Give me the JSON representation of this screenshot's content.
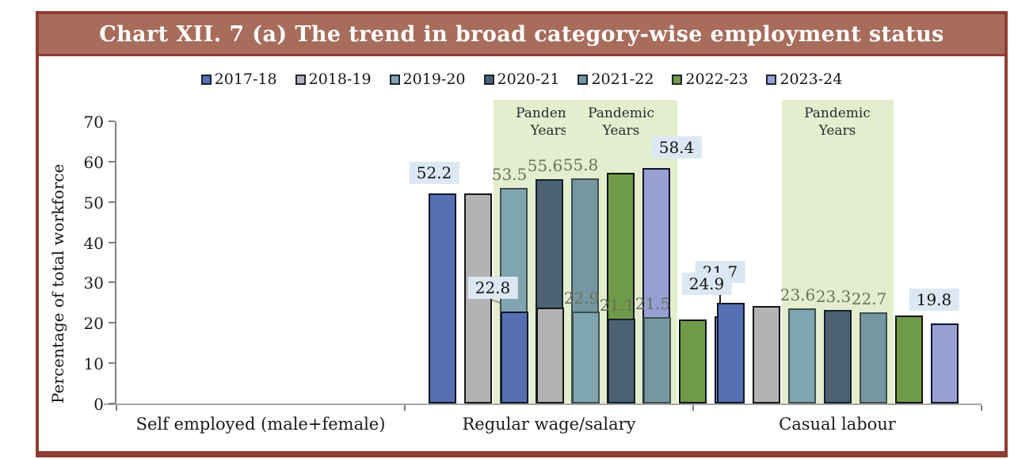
{
  "header": {
    "title": "Chart XII. 7 (a) The trend in broad category-wise employment status"
  },
  "y_axis": {
    "label": "Percentage of total workforce",
    "ticks": [
      "0",
      "10",
      "20",
      "30",
      "40",
      "50",
      "60",
      "70"
    ],
    "max": 70
  },
  "band": {
    "line1": "Pandemic",
    "line2": "Years"
  },
  "colors": {
    "frame_border": "#8F3D33",
    "title_bg": "#A76C5A",
    "band_bg": "#E4EDCE",
    "label_box_bg": "#DBE8F4",
    "plain_label_text": "#6B705F"
  },
  "chart_data": {
    "type": "bar",
    "title": "Chart XII. 7 (a) The trend in broad category-wise employment status",
    "xlabel": "",
    "ylabel": "Percentage of total workforce",
    "ylim": [
      0,
      70
    ],
    "grid": false,
    "legend_position": "top",
    "categories": [
      "Self employed (male+female)",
      "Regular wage/salary",
      "Casual labour"
    ],
    "series": [
      {
        "name": "2017-18",
        "color": "#5470B2",
        "border": "#0F1526",
        "values": [
          52.2,
          22.8,
          24.9
        ]
      },
      {
        "name": "2018-19",
        "color": "#B3B3B3",
        "border": "#161616",
        "values": [
          52.2,
          23.8,
          24.1
        ]
      },
      {
        "name": "2019-20",
        "color": "#7FA5B0",
        "border": "#3E4F4C",
        "values": [
          53.5,
          22.9,
          23.6
        ]
      },
      {
        "name": "2020-21",
        "color": "#4C6272",
        "border": "#15202B",
        "values": [
          55.6,
          21.1,
          23.3
        ]
      },
      {
        "name": "2021-22",
        "color": "#7597A2",
        "border": "#3E4F4C",
        "values": [
          55.8,
          21.5,
          22.7
        ]
      },
      {
        "name": "2022-23",
        "color": "#6F9A47",
        "border": "#0F120B",
        "values": [
          57.3,
          20.9,
          21.8
        ]
      },
      {
        "name": "2023-24",
        "color": "#96A0D2",
        "border": "#10132B",
        "values": [
          58.4,
          21.7,
          19.8
        ]
      }
    ],
    "annotations": {
      "pandemic_band": {
        "text": "Pandemic Years",
        "series_span": [
          "2019-20",
          "2021-22"
        ]
      }
    },
    "data_labels": [
      {
        "category_index": 0,
        "labels": [
          {
            "series_index": 0,
            "text": "52.2",
            "style": "boxed"
          },
          {
            "series_index": 2,
            "text": "53.5",
            "style": "plain"
          },
          {
            "series_index": 3,
            "text": "55.6",
            "style": "plain"
          },
          {
            "series_index": 4,
            "text": "55.8",
            "style": "plain"
          },
          {
            "series_index": 6,
            "text": "58.4",
            "style": "boxed"
          }
        ]
      },
      {
        "category_index": 1,
        "labels": [
          {
            "series_index": 0,
            "text": "22.8",
            "style": "boxed",
            "leader": "diag"
          },
          {
            "series_index": 2,
            "text": "22.9",
            "style": "plain"
          },
          {
            "series_index": 3,
            "text": "21.1",
            "style": "plain"
          },
          {
            "series_index": 4,
            "text": "21.5",
            "style": "plain"
          },
          {
            "series_index": 6,
            "text": "21.7",
            "style": "boxed",
            "leader": "vert"
          }
        ]
      },
      {
        "category_index": 2,
        "labels": [
          {
            "series_index": 0,
            "text": "24.9",
            "style": "boxed"
          },
          {
            "series_index": 2,
            "text": "23.6",
            "style": "plain"
          },
          {
            "series_index": 3,
            "text": "23.3",
            "style": "plain"
          },
          {
            "series_index": 4,
            "text": "22.7",
            "style": "plain"
          },
          {
            "series_index": 6,
            "text": "19.8",
            "style": "boxed"
          }
        ]
      }
    ]
  }
}
